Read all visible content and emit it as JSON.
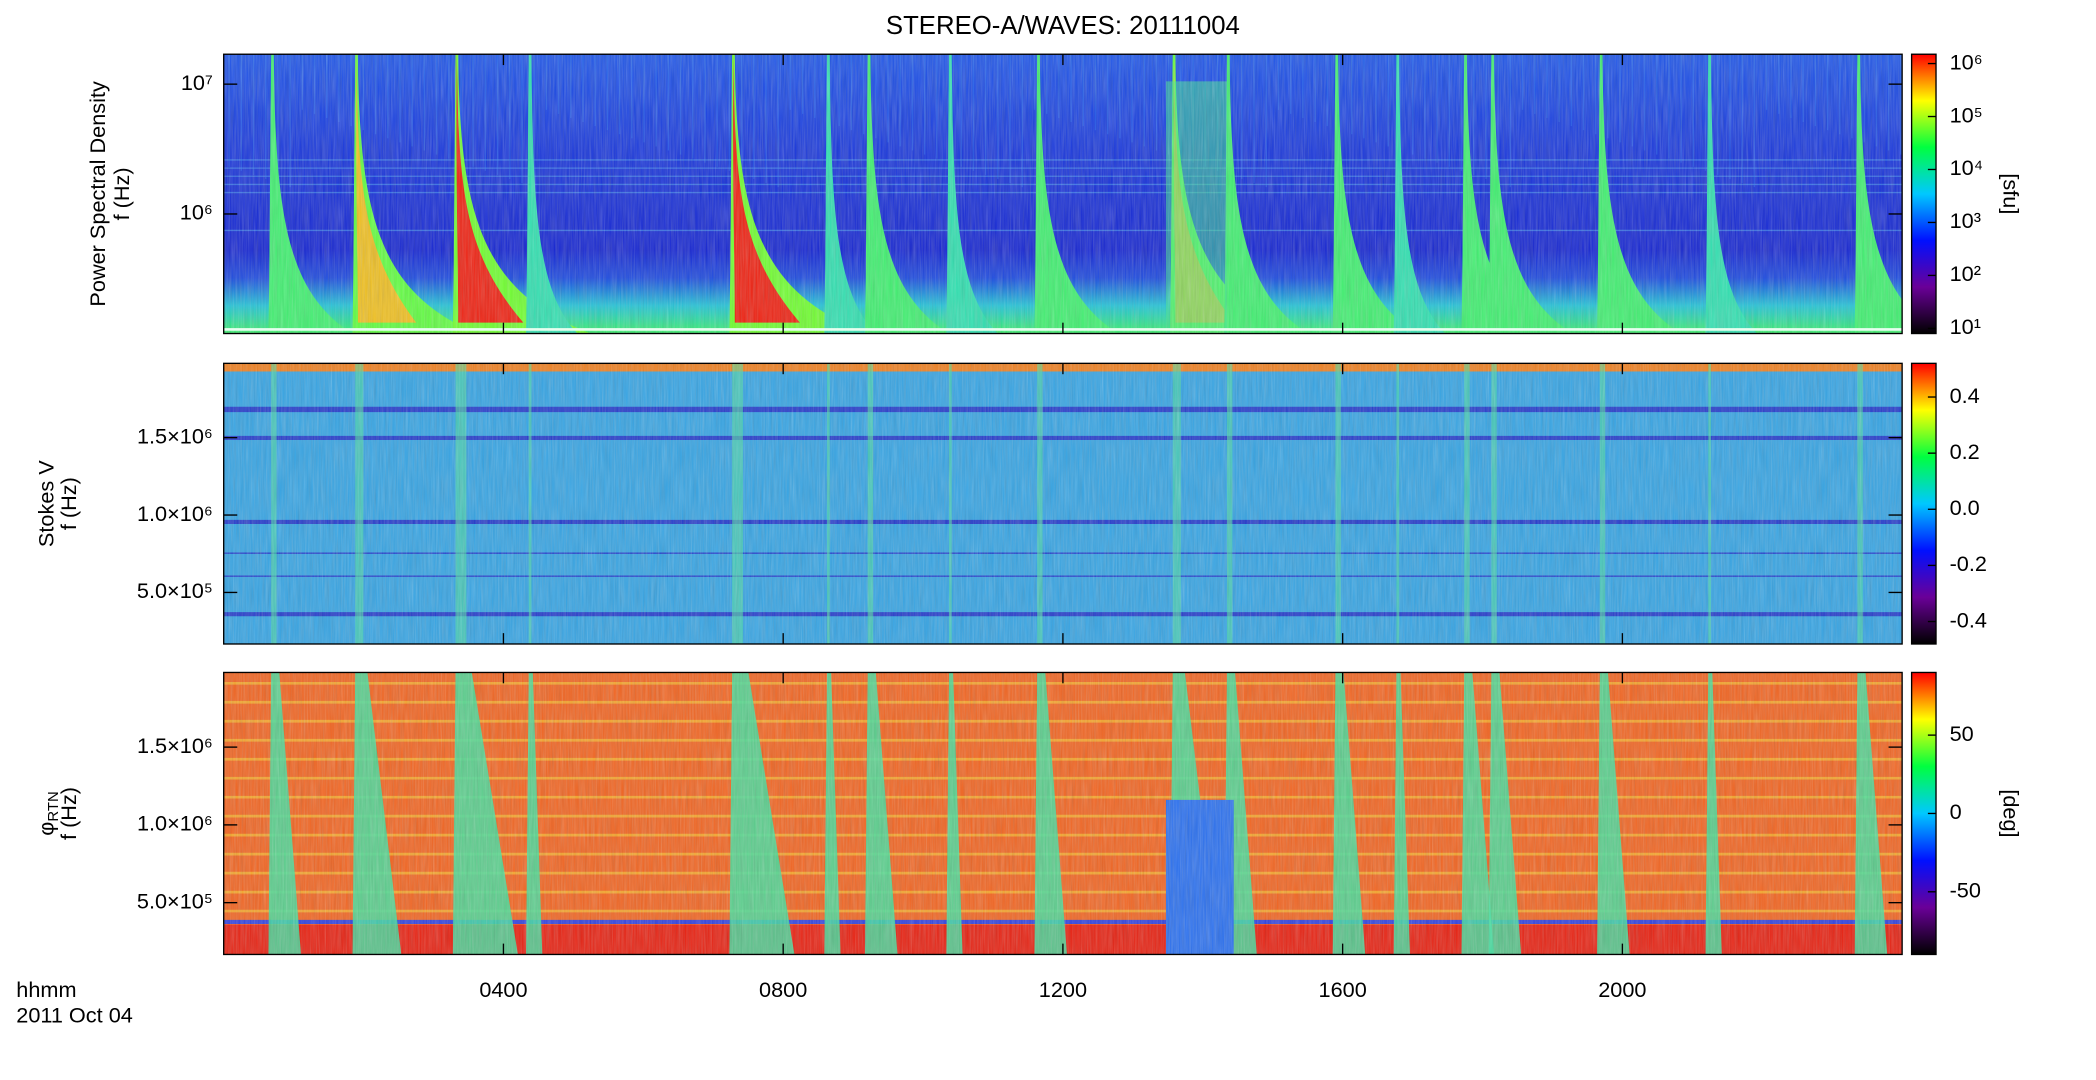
{
  "title": "STEREO-A/WAVES: 20111004",
  "xlabel": "hhmm",
  "date": "2011 Oct 04",
  "time_axis": {
    "xlim": [
      0,
      24
    ],
    "xticks": [
      {
        "value": 4,
        "label": "0400"
      },
      {
        "value": 8,
        "label": "0800"
      },
      {
        "value": 12,
        "label": "1200"
      },
      {
        "value": 16,
        "label": "1600"
      },
      {
        "value": 20,
        "label": "2000"
      }
    ]
  },
  "chart_data": [
    {
      "type": "spectrogram",
      "ylabel": "Power Spectral Density",
      "ylabel_sub": "",
      "ylabel2": "f (Hz)",
      "ylog": true,
      "ylim": [
        120000,
        17000000
      ],
      "yticks": [
        {
          "value": 1000000,
          "label": "10⁶"
        },
        {
          "value": 10000000,
          "label": "10⁷"
        }
      ],
      "colorbar": {
        "label": "[sfu]",
        "log": true,
        "zlim": [
          8,
          1500000
        ],
        "zticks": [
          {
            "value": 10,
            "label": "10¹"
          },
          {
            "value": 100,
            "label": "10²"
          },
          {
            "value": 1000,
            "label": "10³"
          },
          {
            "value": 10000,
            "label": "10⁴"
          },
          {
            "value": 100000,
            "label": "10⁵"
          },
          {
            "value": 1000000,
            "label": "10⁶"
          }
        ],
        "colors": [
          "#000000",
          "#6a0098",
          "#0010ff",
          "#00c8ff",
          "#00ff40",
          "#ffff00",
          "#ff0000"
        ]
      }
    },
    {
      "type": "spectrogram",
      "ylabel": "Stokes V",
      "ylabel_sub": "",
      "ylabel2": "f (Hz)",
      "ylog": false,
      "ylim": [
        167000,
        1980000
      ],
      "yticks": [
        {
          "value": 500000,
          "label": "5.0×10⁵"
        },
        {
          "value": 1000000,
          "label": "1.0×10⁶"
        },
        {
          "value": 1500000,
          "label": "1.5×10⁶"
        }
      ],
      "colorbar": {
        "label": "",
        "log": false,
        "zlim": [
          -0.48,
          0.52
        ],
        "zticks": [
          -0.4,
          -0.2,
          {
            "value": 0,
            "label": "0.0"
          },
          0.2,
          0.4
        ],
        "colors": [
          "#000000",
          "#6a0098",
          "#0010ff",
          "#00c8ff",
          "#00ff40",
          "#ffff00",
          "#ff0000"
        ]
      }
    },
    {
      "type": "spectrogram",
      "ylabel": "φ",
      "ylabel_sub": "RTN",
      "ylabel2": "f (Hz)",
      "ylog": false,
      "ylim": [
        167000,
        1980000
      ],
      "yticks": [
        {
          "value": 500000,
          "label": "5.0×10⁵"
        },
        {
          "value": 1000000,
          "label": "1.0×10⁶"
        },
        {
          "value": 1500000,
          "label": "1.5×10⁶"
        }
      ],
      "colorbar": {
        "label": "[deg]",
        "log": false,
        "zlim": [
          -90,
          90
        ],
        "zticks": [
          -50,
          0,
          50
        ],
        "colors": [
          "#000000",
          "#6a0098",
          "#0010ff",
          "#00c8ff",
          "#00ff40",
          "#ffff00",
          "#ff0000"
        ]
      }
    }
  ]
}
